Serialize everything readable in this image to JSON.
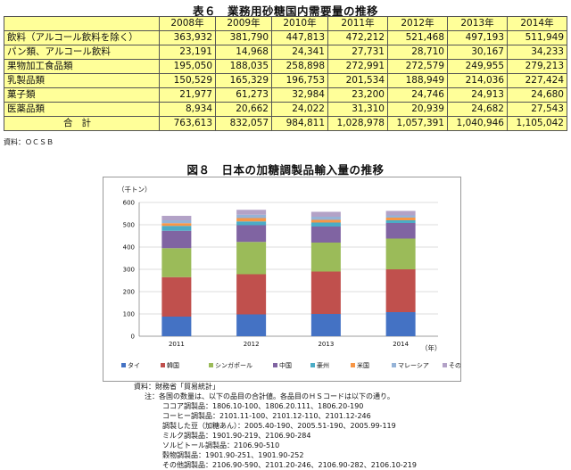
{
  "table6": {
    "title": "表６　業務用砂糖国内需要量の推移",
    "years": [
      "2008年",
      "2009年",
      "2010年",
      "2011年",
      "2012年",
      "2013年",
      "2014年"
    ],
    "rows": [
      {
        "label": "飲料（アルコール飲料を除く）",
        "values": [
          "363,932",
          "381,790",
          "447,813",
          "472,212",
          "521,468",
          "497,193",
          "511,949"
        ]
      },
      {
        "label": "パン類、アルコール飲料",
        "values": [
          "23,191",
          "14,968",
          "24,341",
          "27,731",
          "28,710",
          "30,167",
          "34,233"
        ]
      },
      {
        "label": "果物加工食品類",
        "values": [
          "195,050",
          "188,035",
          "258,898",
          "272,991",
          "272,579",
          "249,955",
          "279,213"
        ]
      },
      {
        "label": "乳製品類",
        "values": [
          "150,529",
          "165,329",
          "196,753",
          "201,534",
          "188,949",
          "214,036",
          "227,424"
        ]
      },
      {
        "label": "菓子類",
        "values": [
          "21,977",
          "61,273",
          "32,984",
          "23,200",
          "24,746",
          "24,913",
          "24,680"
        ]
      },
      {
        "label": "医薬品類",
        "values": [
          "8,934",
          "20,662",
          "24,022",
          "31,310",
          "20,939",
          "24,682",
          "27,543"
        ]
      },
      {
        "label": "合計",
        "values": [
          "763,613",
          "832,057",
          "984,811",
          "1,028,978",
          "1,057,391",
          "1,040,946",
          "1,105,042"
        ]
      }
    ],
    "source": "資料：ＯＣＳＢ"
  },
  "figure8": {
    "title": "図８　日本の加糖調製品輸入量の推移"
  },
  "chart_data": {
    "type": "bar",
    "stacked": true,
    "title": "図８　日本の加糖調製品輸入量の推移",
    "ylabel": "（千トン）",
    "xlabel": "（年）",
    "categories": [
      "2011",
      "2012",
      "2013",
      "2014"
    ],
    "ylim": [
      0,
      600
    ],
    "yticks": [
      0,
      100,
      200,
      300,
      400,
      500,
      600
    ],
    "grid": true,
    "legend_position": "bottom",
    "series": [
      {
        "name": "タイ",
        "color": "#4472c4",
        "values": [
          88,
          98,
          100,
          108
        ]
      },
      {
        "name": "韓国",
        "color": "#c0504d",
        "values": [
          177,
          180,
          190,
          192
        ]
      },
      {
        "name": "シンガポール",
        "color": "#9bbb59",
        "values": [
          130,
          145,
          130,
          138
        ]
      },
      {
        "name": "中国",
        "color": "#8064a2",
        "values": [
          78,
          75,
          72,
          70
        ]
      },
      {
        "name": "豪州",
        "color": "#4bacc6",
        "values": [
          22,
          17,
          18,
          12
        ]
      },
      {
        "name": "米国",
        "color": "#f79646",
        "values": [
          12,
          15,
          12,
          12
        ]
      },
      {
        "name": "マレーシア",
        "color": "#95b3d7",
        "values": [
          13,
          15,
          14,
          10
        ]
      },
      {
        "name": "その他",
        "color": "#b3a2c7",
        "values": [
          20,
          22,
          22,
          20
        ]
      }
    ]
  },
  "notes": {
    "source": "資料：財務省「貿易統計」",
    "note_intro": "注：各国の数量は、以下の品目の合計値。各品目のＨＳコードは以下の通り。",
    "lines": [
      "ココア調製品：1806.10-100、1806.20.111、1806.20-190",
      "コーヒー調製品：2101.11-100、2101.12-110、2101.12-246",
      "調製した豆（加糖あん）：2005.40-190、2005.51-190、2005.99-119",
      "ミルク調製品：1901.90-219、2106.90-284",
      "ソルビトール調製品：2106.90-510",
      "穀物調製品：1901.90-251、1901.90-252",
      "その他調製品：2106.90-590、2101.20-246、2106.90-282、2106.10-219"
    ]
  }
}
